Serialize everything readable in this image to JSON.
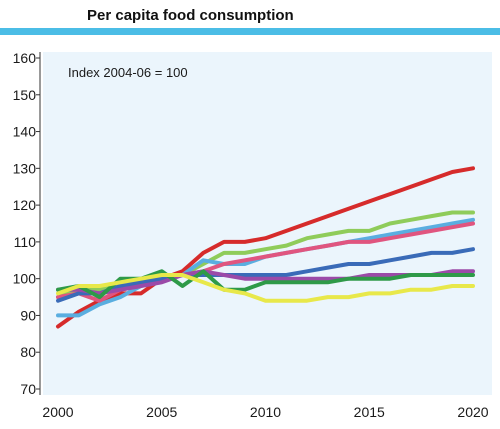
{
  "chart_data": {
    "type": "line",
    "title": "Per capita food consumption",
    "annotation": "Index 2004-06 = 100",
    "xlabel": "",
    "ylabel": "",
    "xlim": [
      2000,
      2020
    ],
    "ylim": [
      70,
      160
    ],
    "x_ticks": [
      "2000",
      "2005",
      "2010",
      "2015",
      "2020"
    ],
    "y_ticks": [
      "70",
      "80",
      "90",
      "100",
      "110",
      "120",
      "130",
      "140",
      "150",
      "160"
    ],
    "grid": false,
    "legend": "none",
    "x": [
      2000,
      2001,
      2002,
      2003,
      2004,
      2005,
      2006,
      2007,
      2008,
      2009,
      2010,
      2011,
      2012,
      2013,
      2014,
      2015,
      2016,
      2017,
      2018,
      2019,
      2020
    ],
    "series": [
      {
        "color": "#d62b2b",
        "values": [
          87,
          91,
          94,
          96,
          96,
          100,
          102,
          107,
          110,
          110,
          111,
          113,
          115,
          117,
          119,
          121,
          123,
          125,
          127,
          129,
          130
        ]
      },
      {
        "color": "#8fcc5a",
        "values": [
          95,
          97,
          97,
          98,
          99,
          100,
          101,
          104,
          107,
          107,
          108,
          109,
          111,
          112,
          113,
          113,
          115,
          116,
          117,
          118,
          118
        ]
      },
      {
        "color": "#5aaee0",
        "values": [
          90,
          90,
          93,
          95,
          98,
          100,
          101,
          105,
          104,
          104,
          106,
          107,
          108,
          109,
          110,
          111,
          112,
          113,
          114,
          115,
          116
        ]
      },
      {
        "color": "#e0557f",
        "values": [
          95,
          96,
          94,
          97,
          98,
          100,
          101,
          102,
          104,
          105,
          106,
          107,
          108,
          109,
          110,
          110,
          111,
          112,
          113,
          114,
          115
        ]
      },
      {
        "color": "#3a6bb8",
        "values": [
          94,
          96,
          96,
          98,
          99,
          100,
          101,
          101,
          101,
          101,
          101,
          101,
          102,
          103,
          104,
          104,
          105,
          106,
          107,
          107,
          108
        ]
      },
      {
        "color": "#9b4aa8",
        "values": [
          97,
          97,
          96,
          97,
          98,
          99,
          101,
          102,
          101,
          100,
          100,
          100,
          100,
          100,
          100,
          101,
          101,
          101,
          101,
          102,
          102
        ]
      },
      {
        "color": "#2e9a48",
        "values": [
          97,
          98,
          95,
          100,
          100,
          102,
          98,
          102,
          97,
          97,
          99,
          99,
          99,
          99,
          100,
          100,
          100,
          101,
          101,
          101,
          101
        ]
      },
      {
        "color": "#e8e84a",
        "values": [
          96,
          98,
          98,
          99,
          100,
          101,
          101,
          99,
          97,
          96,
          94,
          94,
          94,
          95,
          95,
          96,
          96,
          97,
          97,
          98,
          98
        ]
      }
    ]
  }
}
